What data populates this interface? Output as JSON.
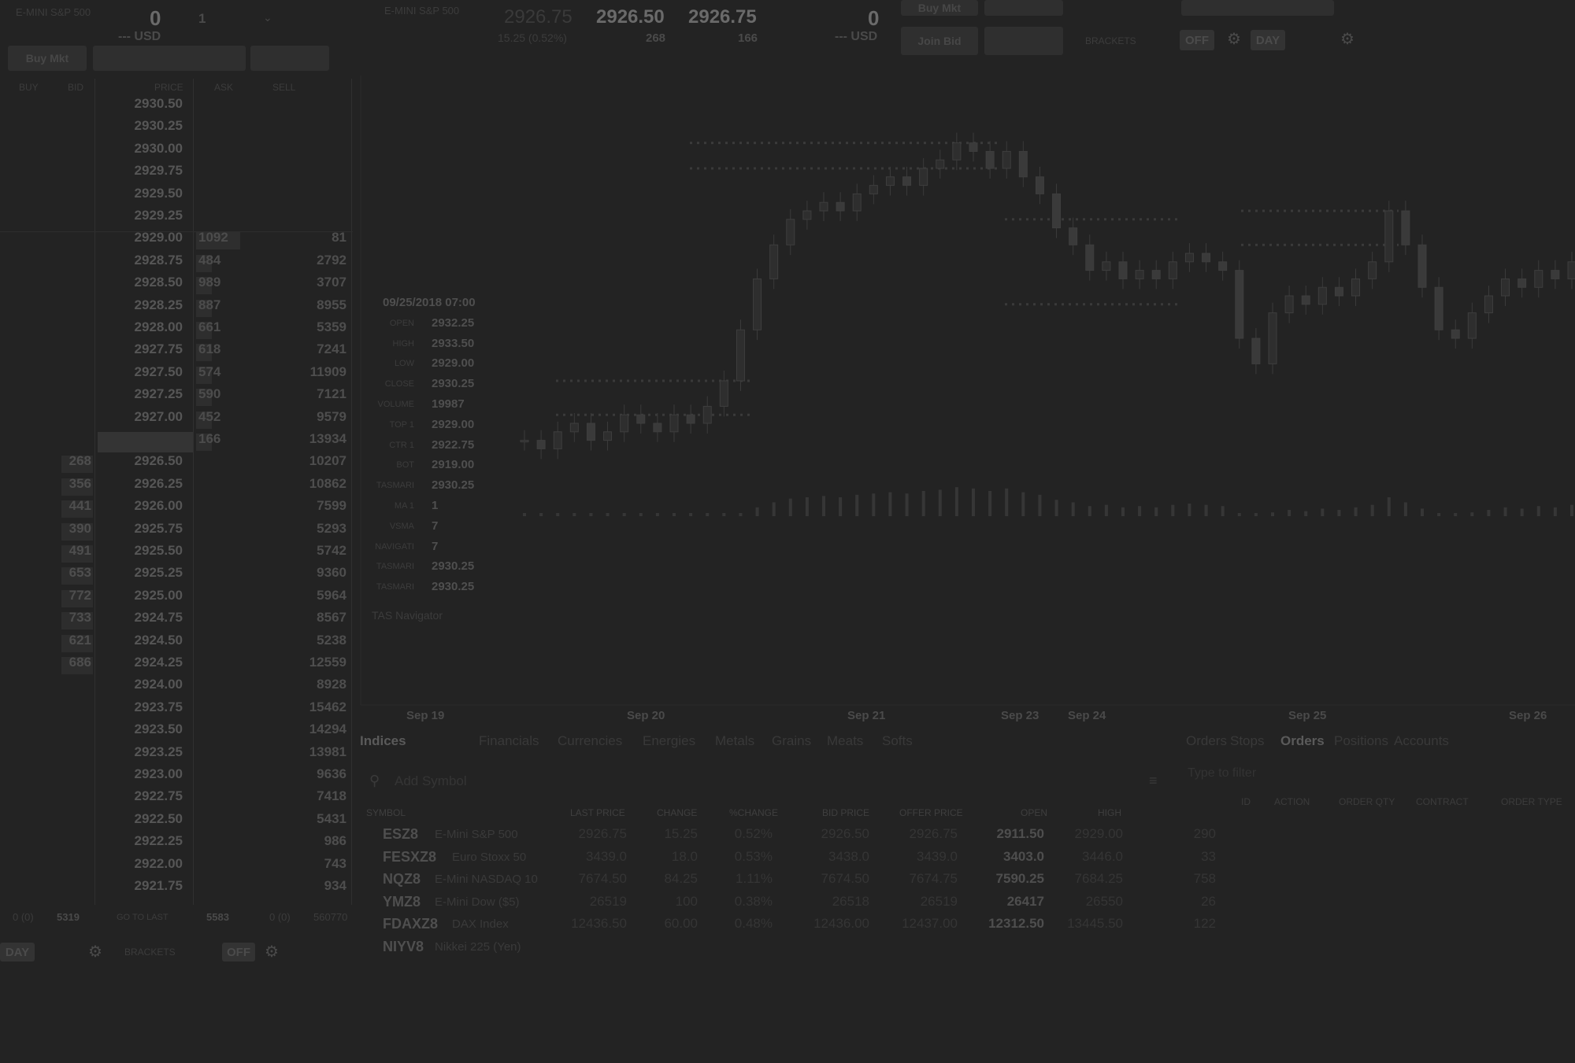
{
  "ladder_header": {
    "instrument": "E-MINI S&P 500",
    "position": "0",
    "pnl": "--- USD",
    "qty": "1",
    "btn1": "Buy Mkt",
    "columns": {
      "buy": "BUY",
      "bid": "BID",
      "price": "PRICE",
      "ask": "ASK",
      "sell": "SELL"
    }
  },
  "ladder_rows": [
    {
      "buy": "",
      "bid": "",
      "price": "2930.50",
      "ask": "",
      "sell": ""
    },
    {
      "buy": "",
      "bid": "",
      "price": "2930.25",
      "ask": "",
      "sell": ""
    },
    {
      "buy": "",
      "bid": "",
      "price": "2930.00",
      "ask": "",
      "sell": ""
    },
    {
      "buy": "",
      "bid": "",
      "price": "2929.75",
      "ask": "",
      "sell": ""
    },
    {
      "buy": "",
      "bid": "",
      "price": "2929.50",
      "ask": "",
      "sell": ""
    },
    {
      "buy": "",
      "bid": "",
      "price": "2929.25",
      "ask": "",
      "sell": ""
    },
    {
      "buy": "",
      "bid": "",
      "price": "2929.00",
      "ask": "1092",
      "sell": "81"
    },
    {
      "buy": "",
      "bid": "",
      "price": "2928.75",
      "ask": "484",
      "sell": "2792"
    },
    {
      "buy": "",
      "bid": "",
      "price": "2928.50",
      "ask": "989",
      "sell": "3707"
    },
    {
      "buy": "",
      "bid": "",
      "price": "2928.25",
      "ask": "887",
      "sell": "8955"
    },
    {
      "buy": "",
      "bid": "",
      "price": "2928.00",
      "ask": "661",
      "sell": "5359"
    },
    {
      "buy": "",
      "bid": "",
      "price": "2927.75",
      "ask": "618",
      "sell": "7241"
    },
    {
      "buy": "",
      "bid": "",
      "price": "2927.50",
      "ask": "574",
      "sell": "11909"
    },
    {
      "buy": "",
      "bid": "",
      "price": "2927.25",
      "ask": "590",
      "sell": "7121"
    },
    {
      "buy": "",
      "bid": "",
      "price": "2927.00",
      "ask": "452",
      "sell": "9579"
    },
    {
      "buy": "",
      "bid": "",
      "price": "",
      "ask": "166",
      "sell": "13934"
    },
    {
      "buy": "",
      "bid": "268",
      "price": "2926.50",
      "ask": "",
      "sell": "10207"
    },
    {
      "buy": "",
      "bid": "356",
      "price": "2926.25",
      "ask": "",
      "sell": "10862"
    },
    {
      "buy": "",
      "bid": "441",
      "price": "2926.00",
      "ask": "",
      "sell": "7599"
    },
    {
      "buy": "",
      "bid": "390",
      "price": "2925.75",
      "ask": "",
      "sell": "5293"
    },
    {
      "buy": "",
      "bid": "491",
      "price": "2925.50",
      "ask": "",
      "sell": "5742"
    },
    {
      "buy": "",
      "bid": "653",
      "price": "2925.25",
      "ask": "",
      "sell": "9360"
    },
    {
      "buy": "",
      "bid": "772",
      "price": "2925.00",
      "ask": "",
      "sell": "5964"
    },
    {
      "buy": "",
      "bid": "733",
      "price": "2924.75",
      "ask": "",
      "sell": "8567"
    },
    {
      "buy": "",
      "bid": "621",
      "price": "2924.50",
      "ask": "",
      "sell": "5238"
    },
    {
      "buy": "",
      "bid": "686",
      "price": "2924.25",
      "ask": "",
      "sell": "12559"
    },
    {
      "buy": "",
      "bid": "",
      "price": "2924.00",
      "ask": "",
      "sell": "8928"
    },
    {
      "buy": "",
      "bid": "",
      "price": "2923.75",
      "ask": "",
      "sell": "15462"
    },
    {
      "buy": "",
      "bid": "",
      "price": "2923.50",
      "ask": "",
      "sell": "14294"
    },
    {
      "buy": "",
      "bid": "",
      "price": "2923.25",
      "ask": "",
      "sell": "13981"
    },
    {
      "buy": "",
      "bid": "",
      "price": "2923.00",
      "ask": "",
      "sell": "9636"
    },
    {
      "buy": "",
      "bid": "",
      "price": "2922.75",
      "ask": "",
      "sell": "7418"
    },
    {
      "buy": "",
      "bid": "",
      "price": "2922.50",
      "ask": "",
      "sell": "5431"
    },
    {
      "buy": "",
      "bid": "",
      "price": "2922.25",
      "ask": "",
      "sell": "986"
    },
    {
      "buy": "",
      "bid": "",
      "price": "2922.00",
      "ask": "",
      "sell": "743"
    },
    {
      "buy": "",
      "bid": "",
      "price": "2921.75",
      "ask": "",
      "sell": "934"
    }
  ],
  "ladder_footer": {
    "left_qty": "0 (0)",
    "left_val": "5319",
    "go_to_last": "GO TO LAST",
    "right_val": "5583",
    "right_qty": "0 (0)",
    "far_right": "560770"
  },
  "ladder_bottom": {
    "day": "DAY",
    "brackets": "BRACKETS",
    "off": "OFF"
  },
  "quote_header": {
    "instrument": "E-MINI S&P 500",
    "last": "2926.75",
    "change": "15.25 (0.52%)",
    "bid": "2926.50",
    "bid_size": "268",
    "ask": "2926.75",
    "ask_size": "166",
    "position": "0",
    "pnl": "--- USD",
    "btn_top_left": "Buy Mkt",
    "btn_mid_left": "Join Bid",
    "brackets": "BRACKETS",
    "off": "OFF",
    "day": "DAY"
  },
  "chart_data": {
    "type": "candlestick",
    "x_labels": [
      "Sep 19",
      "Sep 20",
      "Sep 21",
      "Sep 23",
      "Sep 24",
      "Sep 25",
      "Sep 26"
    ],
    "indicator_label": "TAS Navigator",
    "closes": [
      2903,
      2902,
      2904,
      2905,
      2903,
      2904,
      2906,
      2905,
      2904,
      2906,
      2905,
      2907,
      2910,
      2916,
      2922,
      2926,
      2929,
      2930,
      2931,
      2930,
      2932,
      2933,
      2934,
      2933,
      2935,
      2936,
      2938,
      2937,
      2935,
      2937,
      2934,
      2932,
      2928,
      2926,
      2923,
      2924,
      2922,
      2923,
      2922,
      2924,
      2925,
      2924,
      2923,
      2915,
      2912,
      2918,
      2920,
      2919,
      2921,
      2920,
      2922,
      2924,
      2930,
      2926,
      2921,
      2916,
      2915,
      2918,
      2920,
      2922,
      2921,
      2923,
      2922,
      2924
    ],
    "tooltip": [
      {
        "k": "",
        "v": "09/25/2018 07:00"
      },
      {
        "k": "OPEN",
        "v": "2932.25"
      },
      {
        "k": "HIGH",
        "v": "2933.50"
      },
      {
        "k": "LOW",
        "v": "2929.00"
      },
      {
        "k": "CLOSE",
        "v": "2930.25"
      },
      {
        "k": "VOLUME",
        "v": "19987"
      },
      {
        "k": "TOP 1",
        "v": "2929.00"
      },
      {
        "k": "CTR 1",
        "v": "2922.75"
      },
      {
        "k": "BOT",
        "v": "2919.00"
      },
      {
        "k": "TASMARI",
        "v": "2930.25"
      },
      {
        "k": "MA 1",
        "v": "1"
      },
      {
        "k": "VSMA",
        "v": "7"
      },
      {
        "k": "NAVIGATI",
        "v": "7"
      },
      {
        "k": "TASMARI",
        "v": "2930.25"
      },
      {
        "k": "TASMARI",
        "v": "2930.25"
      }
    ]
  },
  "watchlist": {
    "tabs": [
      "Indices",
      "Financials",
      "Currencies",
      "Energies",
      "Metals",
      "Grains",
      "Meats",
      "Softs"
    ],
    "add_symbol_placeholder": "Add Symbol",
    "columns": [
      "SYMBOL",
      "LAST PRICE",
      "CHANGE",
      "%CHANGE",
      "BID PRICE",
      "OFFER PRICE",
      "OPEN",
      "HIGH"
    ],
    "rows": [
      {
        "sym": "ESZ8",
        "desc": "E-Mini S&P 500",
        "last": "2926.75",
        "chg": "15.25",
        "pct": "0.52%",
        "bid": "2926.50",
        "offer": "2926.75",
        "open": "2911.50",
        "high": "2929.00",
        "x": "290"
      },
      {
        "sym": "FESXZ8",
        "desc": "Euro Stoxx 50",
        "last": "3439.0",
        "chg": "18.0",
        "pct": "0.53%",
        "bid": "3438.0",
        "offer": "3439.0",
        "open": "3403.0",
        "high": "3446.0",
        "x": "33"
      },
      {
        "sym": "NQZ8",
        "desc": "E-Mini NASDAQ 10",
        "last": "7674.50",
        "chg": "84.25",
        "pct": "1.11%",
        "bid": "7674.50",
        "offer": "7674.75",
        "open": "7590.25",
        "high": "7684.25",
        "x": "758"
      },
      {
        "sym": "YMZ8",
        "desc": "E-Mini Dow ($5)",
        "last": "26519",
        "chg": "100",
        "pct": "0.38%",
        "bid": "26518",
        "offer": "26519",
        "open": "26417",
        "high": "26550",
        "x": "26"
      },
      {
        "sym": "FDAXZ8",
        "desc": "DAX Index",
        "last": "12436.50",
        "chg": "60.00",
        "pct": "0.48%",
        "bid": "12436.00",
        "offer": "12437.00",
        "open": "12312.50",
        "high": "13445.50",
        "x": "122"
      },
      {
        "sym": "NIYV8",
        "desc": "Nikkei 225 (Yen)",
        "last": "",
        "chg": "",
        "pct": "",
        "bid": "",
        "offer": "",
        "open": "",
        "high": "",
        "x": ""
      }
    ]
  },
  "orders_panel": {
    "tabs": [
      "Orders",
      "Stops",
      "Orders",
      "Positions",
      "Accounts"
    ],
    "active_tab_index": 2,
    "filter_placeholder": "Type to filter",
    "columns": [
      "ID",
      "ACTION",
      "ORDER QTY",
      "CONTRACT",
      "ORDER TYPE"
    ]
  }
}
